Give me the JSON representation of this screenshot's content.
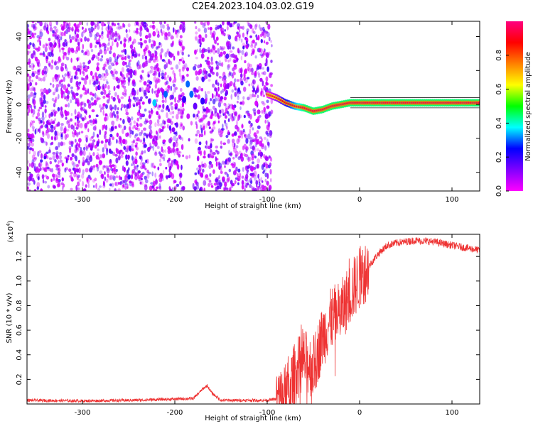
{
  "title": "C2E4.2023.104.03.02.G19",
  "chart_data": [
    {
      "type": "heatmap",
      "title": "C2E4.2023.104.03.02.G19",
      "xlabel": "Height of straight line (km)",
      "ylabel": "Frequency (Hz)",
      "xlim": [
        -360,
        130
      ],
      "ylim": [
        -51,
        49
      ],
      "xticks": [
        -300,
        -200,
        -100,
        0,
        100
      ],
      "yticks": [
        -40,
        -20,
        0,
        20,
        40
      ],
      "colorbar": {
        "label": "Normalized spectral amplitude",
        "range": [
          0.0,
          1.0
        ],
        "ticks": [
          0.0,
          0.2,
          0.4,
          0.6,
          0.8
        ],
        "colormap": [
          "#ff00ff",
          "#8000ff",
          "#0000ff",
          "#00ffff",
          "#00ff00",
          "#ffff00",
          "#ff8000",
          "#ff0000",
          "#ff0080"
        ],
        "position": "right"
      },
      "noise_region_x": [
        -360,
        -95
      ],
      "noise_gap_x": [
        -190,
        -178
      ],
      "tone_trace": {
        "x": [
          -100,
          -90,
          -80,
          -70,
          -60,
          -50,
          -40,
          -30,
          -20,
          -10,
          0,
          20,
          40,
          60,
          80,
          100,
          130
        ],
        "y": [
          6,
          4,
          1,
          -1,
          -2,
          -4,
          -3,
          -1,
          0,
          1,
          1,
          1,
          1,
          1,
          1,
          1,
          1
        ]
      },
      "blobs": [
        {
          "x": -222,
          "y": 1,
          "amp": 0.35
        },
        {
          "x": -210,
          "y": 6,
          "amp": 0.3
        },
        {
          "x": -186,
          "y": 12,
          "amp": 0.3
        },
        {
          "x": -182,
          "y": 6,
          "amp": 0.3
        },
        {
          "x": -190,
          "y": 3,
          "amp": 0.2
        },
        {
          "x": -178,
          "y": -1,
          "amp": 0.15
        },
        {
          "x": -170,
          "y": 2,
          "amp": 0.2
        }
      ]
    },
    {
      "type": "line",
      "xlabel": "Height of straight line (km)",
      "ylabel": "SNR (10 * v/v)",
      "y_exponent_label": "(x10",
      "y_exponent_power": "4",
      "y_exponent_close": ")",
      "xlim": [
        -360,
        130
      ],
      "ylim": [
        0,
        13800
      ],
      "xticks": [
        -300,
        -200,
        -100,
        0,
        100
      ],
      "yticks": [
        0.2,
        0.4,
        0.6,
        0.8,
        1.0,
        1.2
      ],
      "line_color": "#ee3333",
      "series": [
        {
          "x": [
            -360,
            -300,
            -250,
            -200,
            -180,
            -170,
            -165,
            -160,
            -150,
            -120,
            -100,
            -80,
            -70,
            -60,
            -50,
            -40,
            -30,
            -20,
            -10,
            0,
            10,
            20,
            30,
            40,
            60,
            80,
            100,
            130
          ],
          "y": [
            300,
            250,
            300,
            400,
            450,
            1200,
            1500,
            900,
            300,
            300,
            300,
            500,
            2500,
            3500,
            3000,
            5500,
            7000,
            7500,
            9000,
            10200,
            11200,
            12200,
            12900,
            13100,
            13300,
            13200,
            12900,
            12500
          ]
        }
      ]
    }
  ]
}
